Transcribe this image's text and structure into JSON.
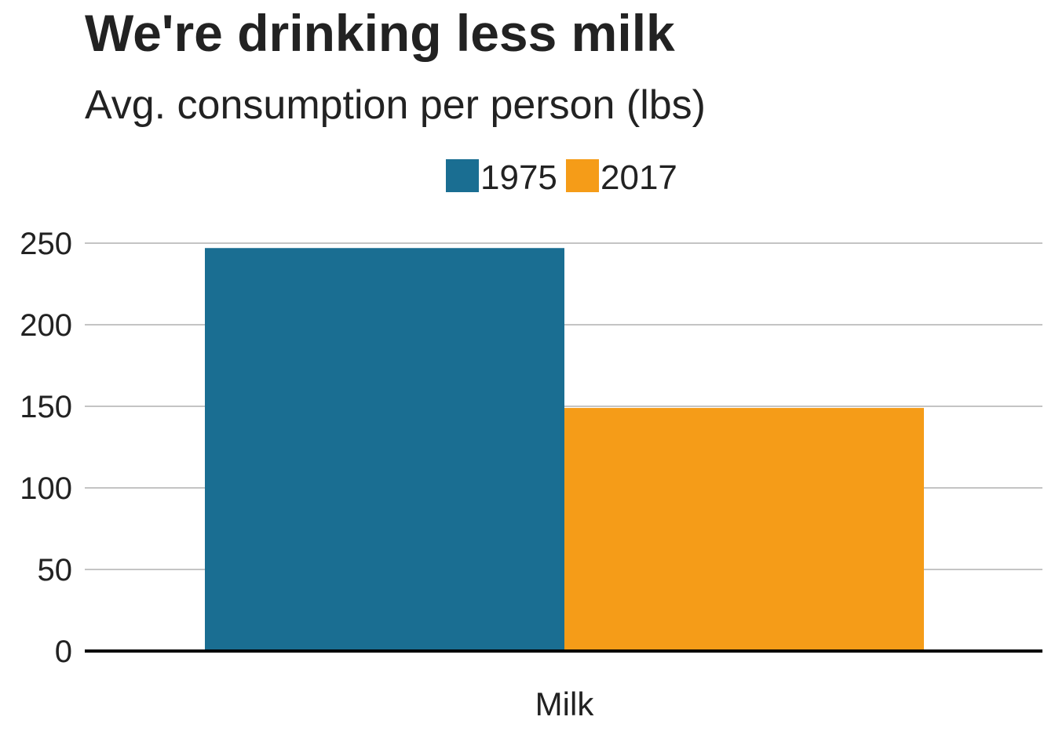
{
  "chart_data": {
    "type": "bar",
    "title": "We're drinking less milk",
    "subtitle": "Avg. consumption per person (lbs)",
    "categories": [
      "Milk"
    ],
    "series": [
      {
        "name": "1975",
        "values": [
          247
        ],
        "color": "#1a6e92"
      },
      {
        "name": "2017",
        "values": [
          149
        ],
        "color": "#f59c18"
      }
    ],
    "xlabel": "",
    "ylabel": "",
    "ylim": [
      0,
      250
    ],
    "yticks": [
      0,
      50,
      100,
      150,
      200,
      250
    ],
    "grid": true,
    "legend_position": "top-center"
  }
}
